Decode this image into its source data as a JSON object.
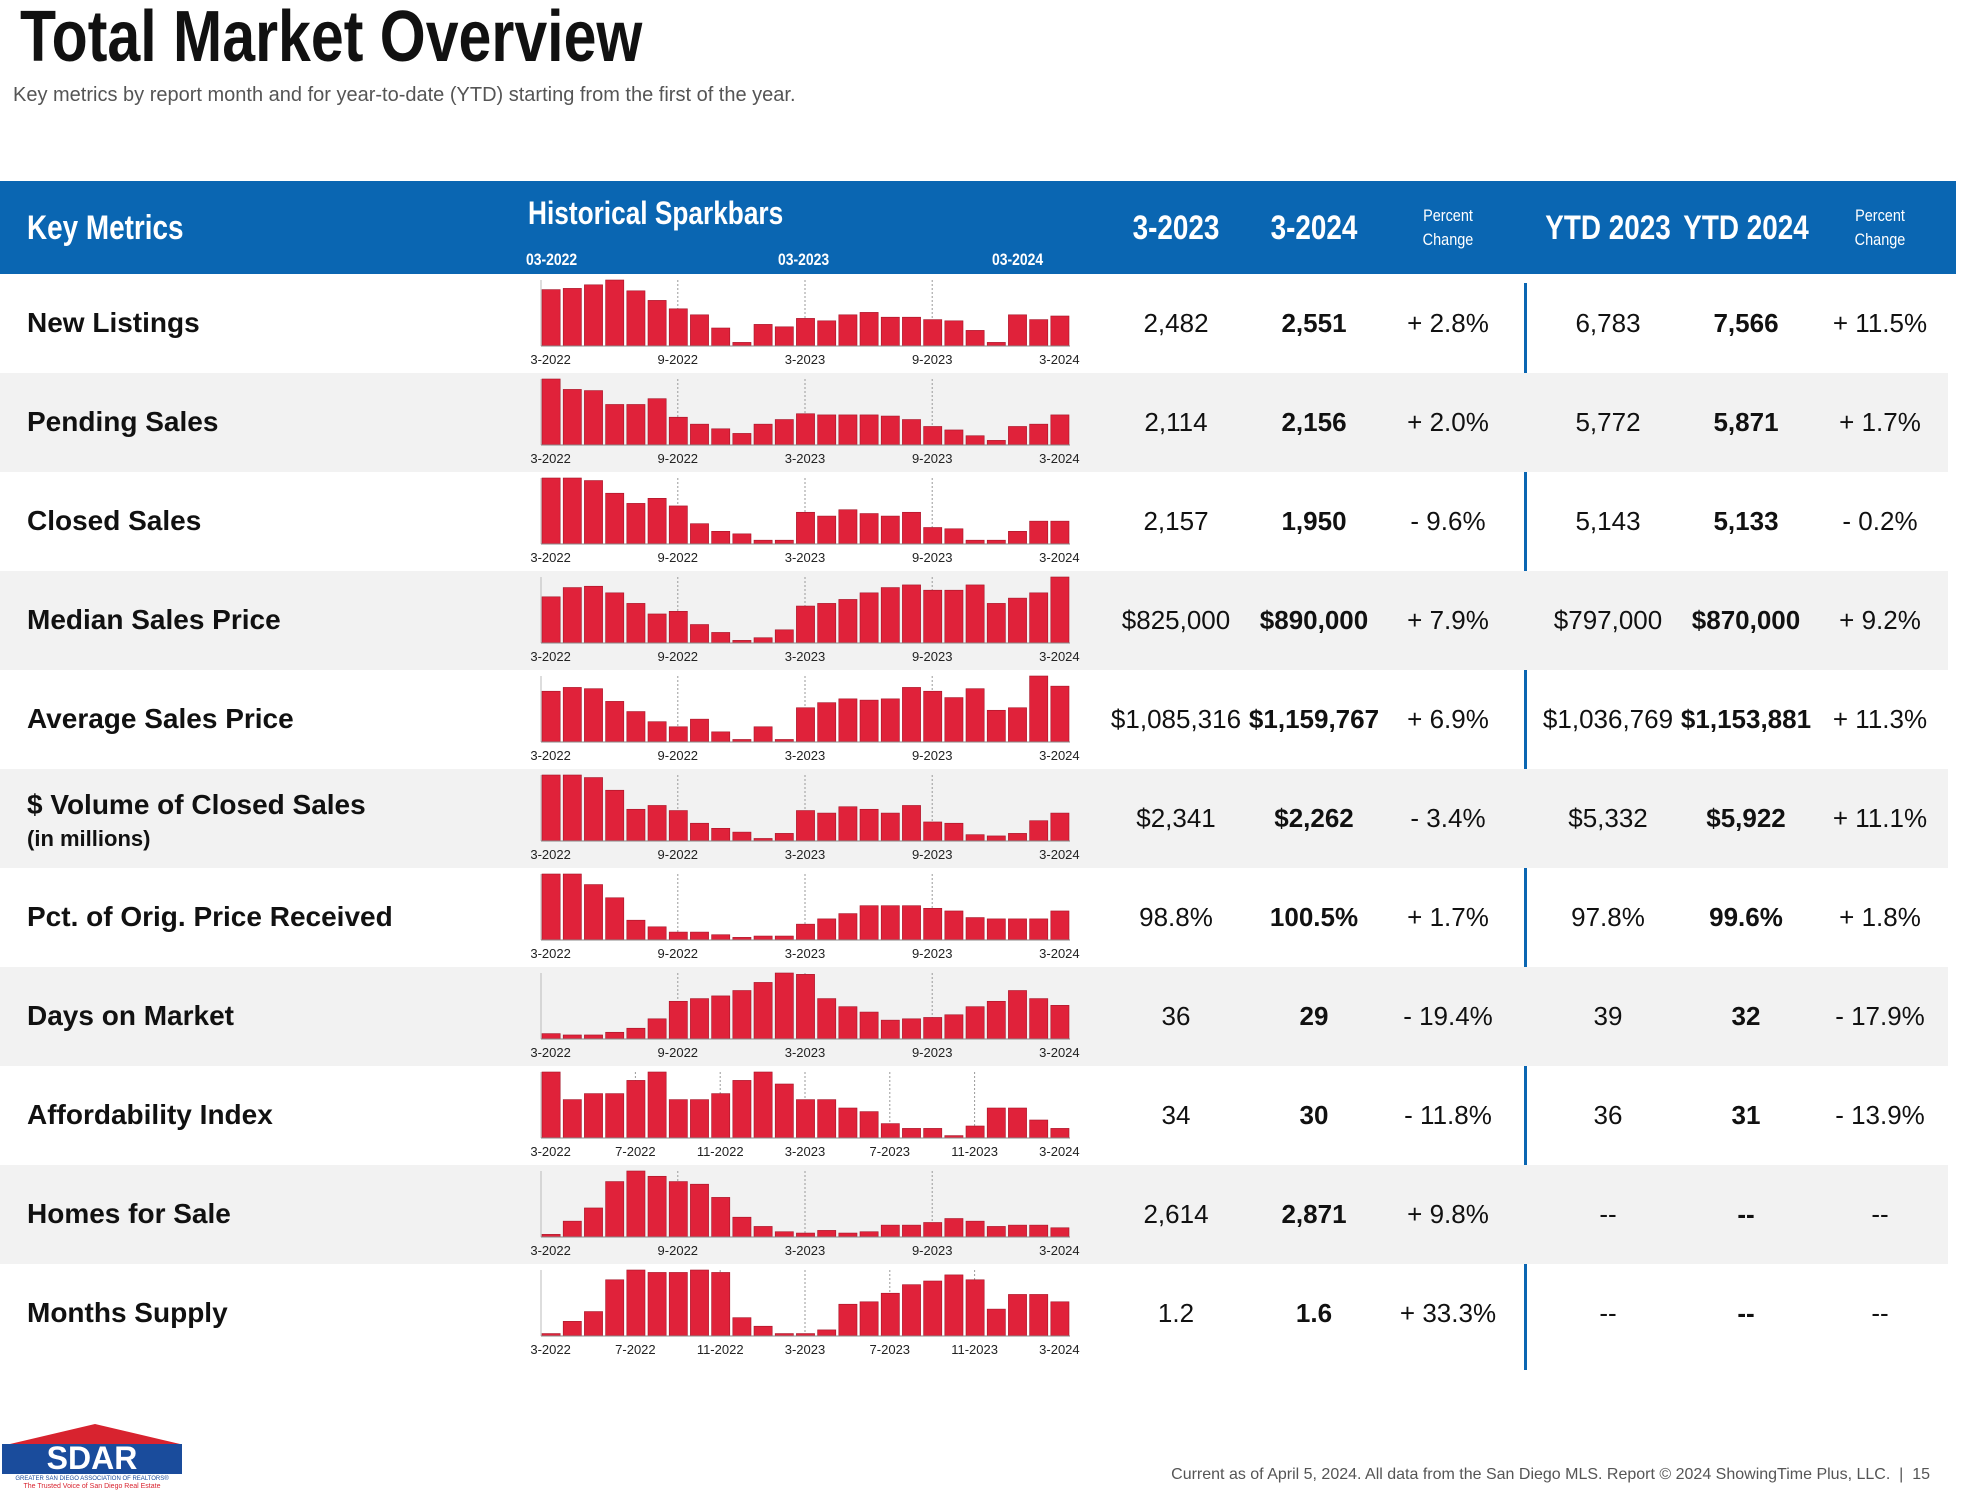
{
  "header": {
    "title": "Total Market Overview",
    "subtitle": "Key metrics by report month and for year-to-date (YTD) starting from the first of the year."
  },
  "table": {
    "columns": [
      "Key Metrics",
      "Historical Sparkbars",
      "3-2023",
      "3-2024",
      "Percent Change",
      "YTD 2023",
      "YTD 2024",
      "Percent Change"
    ],
    "spark_header": [
      "03-2022",
      "03-2023",
      "03-2024"
    ],
    "rows": [
      {
        "label": "New Listings",
        "cells": [
          "2,482",
          "2,551",
          "+ 2.8%",
          "6,783",
          "7,566",
          "+ 11.5%"
        ],
        "spark": {
          "categories": [
            "3-2022",
            null,
            null,
            null,
            null,
            null,
            "9-2022",
            null,
            null,
            null,
            null,
            null,
            "3-2023",
            null,
            null,
            null,
            null,
            null,
            "9-2023",
            null,
            null,
            null,
            null,
            null,
            "3-2024"
          ],
          "values": [
            47,
            48,
            51,
            55,
            46,
            38,
            31,
            26,
            15,
            3,
            18,
            16,
            23,
            21,
            26,
            28,
            24,
            24,
            22,
            21,
            13,
            3,
            26,
            22,
            25
          ]
        }
      },
      {
        "label": "Pending Sales",
        "cells": [
          "2,114",
          "2,156",
          "+ 2.0%",
          "5,772",
          "5,871",
          "+ 1.7%"
        ],
        "spark": {
          "categories": [
            "3-2022",
            null,
            null,
            null,
            null,
            null,
            "9-2022",
            null,
            null,
            null,
            null,
            null,
            "3-2023",
            null,
            null,
            null,
            null,
            null,
            "9-2023",
            null,
            null,
            null,
            null,
            null,
            "3-2024"
          ],
          "values": [
            57,
            48,
            47,
            35,
            35,
            40,
            24,
            18,
            14,
            10,
            18,
            22,
            27,
            26,
            26,
            26,
            25,
            22,
            16,
            13,
            8,
            4,
            16,
            18,
            26
          ]
        }
      },
      {
        "label": "Closed Sales",
        "cells": [
          "2,157",
          "1,950",
          "- 9.6%",
          "5,143",
          "5,133",
          "- 0.2%"
        ],
        "spark": {
          "categories": [
            "3-2022",
            null,
            null,
            null,
            null,
            null,
            "9-2022",
            null,
            null,
            null,
            null,
            null,
            "3-2023",
            null,
            null,
            null,
            null,
            null,
            "9-2023",
            null,
            null,
            null,
            null,
            null,
            "3-2024"
          ],
          "values": [
            52,
            52,
            50,
            40,
            32,
            36,
            30,
            16,
            10,
            8,
            3,
            3,
            25,
            22,
            27,
            24,
            22,
            25,
            13,
            12,
            3,
            3,
            10,
            18,
            18
          ]
        }
      },
      {
        "label": "Median Sales Price",
        "cells": [
          "$825,000",
          "$890,000",
          "+ 7.9%",
          "$797,000",
          "$870,000",
          "+ 9.2%"
        ],
        "spark": {
          "categories": [
            "3-2022",
            null,
            null,
            null,
            null,
            null,
            "9-2022",
            null,
            null,
            null,
            null,
            null,
            "3-2023",
            null,
            null,
            null,
            null,
            null,
            "9-2023",
            null,
            null,
            null,
            null,
            null,
            "3-2024"
          ],
          "values": [
            35,
            42,
            43,
            38,
            30,
            22,
            24,
            14,
            8,
            2,
            4,
            10,
            28,
            30,
            33,
            38,
            42,
            44,
            40,
            40,
            44,
            30,
            34,
            38,
            50
          ]
        }
      },
      {
        "label": "Average Sales Price",
        "cells": [
          "$1,085,316",
          "$1,159,767",
          "+ 6.9%",
          "$1,036,769",
          "$1,153,881",
          "+ 11.3%"
        ],
        "spark": {
          "categories": [
            "3-2022",
            null,
            null,
            null,
            null,
            null,
            "9-2022",
            null,
            null,
            null,
            null,
            null,
            "3-2023",
            null,
            null,
            null,
            null,
            null,
            "9-2023",
            null,
            null,
            null,
            null,
            null,
            "3-2024"
          ],
          "values": [
            40,
            43,
            42,
            32,
            24,
            16,
            12,
            18,
            8,
            2,
            12,
            2,
            27,
            31,
            34,
            33,
            34,
            43,
            40,
            35,
            42,
            25,
            27,
            52,
            44
          ]
        }
      },
      {
        "label": "$ Volume of Closed Sales",
        "sublabel": "(in millions)",
        "cells": [
          "$2,341",
          "$2,262",
          "- 3.4%",
          "$5,332",
          "$5,922",
          "+ 11.1%"
        ],
        "spark": {
          "categories": [
            "3-2022",
            null,
            null,
            null,
            null,
            null,
            "9-2022",
            null,
            null,
            null,
            null,
            null,
            "3-2023",
            null,
            null,
            null,
            null,
            null,
            "9-2023",
            null,
            null,
            null,
            null,
            null,
            "3-2024"
          ],
          "values": [
            52,
            52,
            50,
            40,
            25,
            28,
            24,
            14,
            10,
            7,
            2,
            6,
            24,
            22,
            27,
            25,
            22,
            28,
            15,
            14,
            5,
            4,
            6,
            16,
            22
          ]
        }
      },
      {
        "label": "Pct. of Orig. Price Received",
        "cells": [
          "98.8%",
          "100.5%",
          "+ 1.7%",
          "97.8%",
          "99.6%",
          "+ 1.8%"
        ],
        "spark": {
          "categories": [
            "3-2022",
            null,
            null,
            null,
            null,
            null,
            "9-2022",
            null,
            null,
            null,
            null,
            null,
            "3-2023",
            null,
            null,
            null,
            null,
            null,
            "9-2023",
            null,
            null,
            null,
            null,
            null,
            "3-2024"
          ],
          "values": [
            50,
            50,
            42,
            32,
            15,
            10,
            6,
            6,
            4,
            2,
            3,
            3,
            12,
            16,
            20,
            26,
            26,
            26,
            24,
            22,
            17,
            16,
            16,
            16,
            22
          ]
        }
      },
      {
        "label": "Days on Market",
        "cells": [
          "36",
          "29",
          "- 19.4%",
          "39",
          "32",
          "- 17.9%"
        ],
        "spark": {
          "categories": [
            "3-2022",
            null,
            null,
            null,
            null,
            null,
            "9-2022",
            null,
            null,
            null,
            null,
            null,
            "3-2023",
            null,
            null,
            null,
            null,
            null,
            "9-2023",
            null,
            null,
            null,
            null,
            null,
            "3-2024"
          ],
          "values": [
            4,
            3,
            3,
            5,
            8,
            15,
            28,
            30,
            32,
            36,
            42,
            49,
            48,
            30,
            24,
            20,
            14,
            15,
            16,
            18,
            24,
            28,
            36,
            30,
            25
          ]
        }
      },
      {
        "label": "Affordability Index",
        "cells": [
          "34",
          "30",
          "- 11.8%",
          "36",
          "31",
          "- 13.9%"
        ],
        "spark": {
          "categories": [
            "3-2022",
            null,
            null,
            null,
            "7-2022",
            null,
            null,
            null,
            "11-2022",
            null,
            null,
            null,
            "3-2023",
            null,
            null,
            null,
            "7-2023",
            null,
            null,
            null,
            "11-2023",
            null,
            null,
            null,
            "3-2024"
          ],
          "values": [
            55,
            32,
            37,
            37,
            48,
            55,
            32,
            32,
            37,
            48,
            55,
            45,
            32,
            32,
            25,
            22,
            12,
            8,
            8,
            2,
            10,
            25,
            25,
            15,
            8
          ]
        }
      },
      {
        "label": "Homes for Sale",
        "cells": [
          "2,614",
          "2,871",
          "+ 9.8%",
          "--",
          "--",
          "--"
        ],
        "spark": {
          "categories": [
            "3-2022",
            null,
            null,
            null,
            null,
            null,
            "9-2022",
            null,
            null,
            null,
            null,
            null,
            "3-2023",
            null,
            null,
            null,
            null,
            null,
            "9-2023",
            null,
            null,
            null,
            null,
            null,
            "3-2024"
          ],
          "values": [
            2,
            12,
            22,
            42,
            50,
            46,
            42,
            40,
            30,
            15,
            8,
            4,
            3,
            5,
            3,
            4,
            9,
            9,
            11,
            14,
            12,
            8,
            9,
            9,
            7
          ]
        }
      },
      {
        "label": "Months Supply",
        "cells": [
          "1.2",
          "1.6",
          "+ 33.3%",
          "--",
          "--",
          "--"
        ],
        "spark": {
          "categories": [
            "3-2022",
            null,
            null,
            null,
            "7-2022",
            null,
            null,
            null,
            "11-2022",
            null,
            null,
            null,
            "3-2023",
            null,
            null,
            null,
            "7-2023",
            null,
            null,
            null,
            "11-2023",
            null,
            null,
            null,
            "3-2024"
          ],
          "values": [
            2,
            12,
            20,
            46,
            54,
            52,
            52,
            54,
            52,
            15,
            8,
            2,
            2,
            5,
            26,
            28,
            35,
            42,
            45,
            50,
            46,
            22,
            34,
            34,
            28
          ]
        }
      }
    ]
  },
  "footer": {
    "logo": "SDAR",
    "logo_line": "GREATER SAN DIEGO ASSOCIATION OF REALTORS®",
    "tagline": "The Trusted Voice of San Diego Real Estate",
    "note": "Current as of April 5, 2024. All data from the San Diego MLS. Report © 2024 ShowingTime Plus, LLC.",
    "page": "15"
  }
}
